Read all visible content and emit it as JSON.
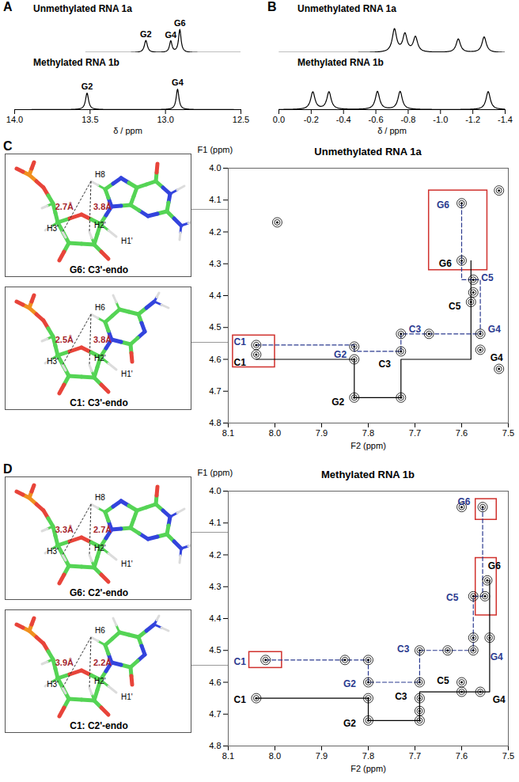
{
  "chart_data": [
    {
      "panel": "A",
      "type": "line",
      "xlabel": "δ / ppm",
      "xlim": [
        14.0,
        12.5
      ],
      "xticks": [
        {
          "value": 14.0,
          "label": "14.0"
        },
        13.5,
        {
          "value": 13.0,
          "label": "13.0"
        },
        12.5
      ],
      "ylim": [
        0,
        1
      ],
      "tick_labels": "x",
      "series": [
        {
          "name": "Unmethylated RNA 1a",
          "color": "#000000",
          "peaks": [
            {
              "label": "G2",
              "position": 13.13,
              "height": 0.45,
              "width": 0.012
            },
            {
              "label": "G4",
              "position": 12.965,
              "height": 0.42,
              "width": 0.01
            },
            {
              "label": "G6",
              "position": 12.905,
              "height": 0.85,
              "width": 0.01
            }
          ]
        },
        {
          "name": "Methylated RNA 1b",
          "color": "#000000",
          "peaks": [
            {
              "label": "G2",
              "position": 13.52,
              "height": 0.55,
              "width": 0.012
            },
            {
              "label": "G4",
              "position": 12.92,
              "height": 0.68,
              "width": 0.011
            }
          ]
        }
      ]
    },
    {
      "panel": "B",
      "type": "line",
      "xlabel": "δ / ppm",
      "xlim": [
        0.0,
        -1.4
      ],
      "xticks": [
        {
          "value": 0.0,
          "label": "0.0"
        },
        -0.2,
        -0.4,
        -0.6,
        -0.8,
        {
          "value": -1.0,
          "label": "-1.0"
        },
        -1.2,
        -1.4
      ],
      "ylim": [
        0,
        1
      ],
      "tick_labels": "x",
      "series": [
        {
          "name": "Unmethylated RNA 1a",
          "color": "#000000",
          "peaks": [
            {
              "position": -0.715,
              "height": 0.85,
              "width": 0.016
            },
            {
              "position": -0.78,
              "height": 0.66,
              "width": 0.016
            },
            {
              "position": -0.845,
              "height": 0.56,
              "width": 0.016
            },
            {
              "position": -1.11,
              "height": 0.5,
              "width": 0.016
            },
            {
              "position": -1.27,
              "height": 0.58,
              "width": 0.016
            }
          ]
        },
        {
          "name": "Methylated RNA 1b",
          "color": "#000000",
          "peaks": [
            {
              "position": -0.21,
              "height": 0.58,
              "width": 0.016
            },
            {
              "position": -0.31,
              "height": 0.58,
              "width": 0.016
            },
            {
              "position": -0.61,
              "height": 0.6,
              "width": 0.016
            },
            {
              "position": -0.75,
              "height": 0.6,
              "width": 0.016
            },
            {
              "position": -1.295,
              "height": 0.6,
              "width": 0.016
            }
          ]
        }
      ]
    },
    {
      "panel": "C",
      "type": "scatter",
      "title": "Unmethylated RNA 1a",
      "xlabel": "F2 (ppm)",
      "ylabel": "F1 (ppm)",
      "xlim": [
        8.1,
        7.5
      ],
      "xticks": [
        8.1,
        {
          "value": 8.0,
          "label": "8.0"
        },
        7.9,
        7.8,
        7.7,
        7.6,
        7.5
      ],
      "ylim": [
        4.0,
        4.8
      ],
      "yticks": [
        {
          "value": 4.0,
          "label": "4.0"
        },
        4.1,
        4.2,
        4.3,
        4.4,
        4.5,
        4.6,
        4.7,
        4.8
      ],
      "cross_peaks": {
        "color": "#000000",
        "x": [
          8.04,
          8.04,
          7.83,
          7.83,
          7.83,
          7.73,
          7.73,
          7.73,
          7.67,
          7.56,
          7.56,
          7.575,
          7.575,
          7.58,
          7.6,
          7.6,
          7.995,
          7.52,
          7.52
        ],
        "y": [
          4.555,
          4.585,
          4.56,
          4.6,
          4.72,
          4.52,
          4.575,
          4.72,
          4.52,
          4.52,
          4.57,
          4.35,
          4.39,
          4.42,
          4.11,
          4.29,
          4.17,
          4.07,
          4.63
        ]
      },
      "walks": [
        {
          "color": "#000000",
          "line_style": "solid",
          "x": [
            8.04,
            7.83,
            7.83,
            7.73,
            7.73,
            7.58,
            7.58
          ],
          "y": [
            4.6,
            4.6,
            4.72,
            4.72,
            4.6,
            4.6,
            4.29
          ]
        },
        {
          "color": "#2b3a8f",
          "line_style": "dashed",
          "x": [
            8.04,
            7.83,
            7.83,
            7.73,
            7.73,
            7.56,
            7.56,
            7.6,
            7.6
          ],
          "y": [
            4.555,
            4.555,
            4.575,
            4.575,
            4.52,
            4.52,
            4.35,
            4.35,
            4.11
          ]
        }
      ],
      "annotations": [
        {
          "text": "C1",
          "x": 8.075,
          "y": 4.61,
          "color": "#000000"
        },
        {
          "text": "G2",
          "x": 7.865,
          "y": 4.735,
          "color": "#000000"
        },
        {
          "text": "C3",
          "x": 7.765,
          "y": 4.615,
          "color": "#000000"
        },
        {
          "text": "G4",
          "x": 7.525,
          "y": 4.595,
          "color": "#000000"
        },
        {
          "text": "C5",
          "x": 7.615,
          "y": 4.435,
          "color": "#000000"
        },
        {
          "text": "G6",
          "x": 7.635,
          "y": 4.3,
          "color": "#000000"
        },
        {
          "text": "C1",
          "x": 8.075,
          "y": 4.545,
          "color": "#2b3a8f"
        },
        {
          "text": "G2",
          "x": 7.86,
          "y": 4.585,
          "color": "#2b3a8f"
        },
        {
          "text": "C3",
          "x": 7.7,
          "y": 4.505,
          "color": "#2b3a8f"
        },
        {
          "text": "G4",
          "x": 7.53,
          "y": 4.505,
          "color": "#2b3a8f"
        },
        {
          "text": "C5",
          "x": 7.545,
          "y": 4.345,
          "color": "#2b3a8f"
        },
        {
          "text": "G6",
          "x": 7.64,
          "y": 4.115,
          "color": "#2b3a8f"
        }
      ],
      "boxes": [
        {
          "x": [
            8.09,
            8.0
          ],
          "y": [
            4.525,
            4.625
          ],
          "color": "#d0312d"
        },
        {
          "x": [
            7.67,
            7.545
          ],
          "y": [
            4.07,
            4.32
          ],
          "color": "#d0312d"
        }
      ],
      "structures": [
        {
          "title": "G6: C3'-endo",
          "atoms": [
            "H8",
            "H3'",
            "H2'",
            "H1'"
          ],
          "distances": [
            {
              "from": "H8",
              "to": "H3'",
              "label": "2.7Å"
            },
            {
              "from": "H8",
              "to": "H2'",
              "label": "3.8Å"
            }
          ]
        },
        {
          "title": "C1: C3'-endo",
          "atoms": [
            "H6",
            "H3'",
            "H2'",
            "H1'"
          ],
          "distances": [
            {
              "from": "H6",
              "to": "H3'",
              "label": "2.5Å"
            },
            {
              "from": "H6",
              "to": "H2'",
              "label": "3.8Å"
            }
          ]
        }
      ]
    },
    {
      "panel": "D",
      "type": "scatter",
      "title": "Methylated RNA 1b",
      "xlabel": "F2 (ppm)",
      "ylabel": "F1 (ppm)",
      "xlim": [
        8.1,
        7.5
      ],
      "xticks": [
        8.1,
        {
          "value": 8.0,
          "label": "8.0"
        },
        7.9,
        7.8,
        7.7,
        7.6,
        7.5
      ],
      "ylim": [
        4.0,
        4.8
      ],
      "yticks": [
        {
          "value": 4.0,
          "label": "4.0"
        },
        4.1,
        4.2,
        4.3,
        4.4,
        4.5,
        4.6,
        4.7,
        4.8
      ],
      "cross_peaks": {
        "color": "#000000",
        "x": [
          8.02,
          8.04,
          7.8,
          7.8,
          7.8,
          7.8,
          7.69,
          7.69,
          7.69,
          7.69,
          7.63,
          7.575,
          7.575,
          7.54,
          7.56,
          7.6,
          7.6,
          7.545,
          7.55,
          7.575,
          7.6,
          7.555,
          7.85,
          7.69
        ],
        "y": [
          4.53,
          4.65,
          4.53,
          4.6,
          4.65,
          4.72,
          4.5,
          4.6,
          4.65,
          4.72,
          4.5,
          4.5,
          4.46,
          4.46,
          4.63,
          4.6,
          4.63,
          4.28,
          4.33,
          4.33,
          4.05,
          4.05,
          4.53,
          4.69
        ]
      },
      "walks": [
        {
          "color": "#000000",
          "line_style": "solid",
          "x": [
            8.04,
            7.8,
            7.8,
            7.69,
            7.69,
            7.54,
            7.54
          ],
          "y": [
            4.65,
            4.65,
            4.72,
            4.72,
            4.63,
            4.63,
            4.28
          ]
        },
        {
          "color": "#2b3a8f",
          "line_style": "dashed",
          "x": [
            8.02,
            7.8,
            7.8,
            7.69,
            7.69,
            7.575,
            7.575,
            7.555,
            7.555
          ],
          "y": [
            4.53,
            4.53,
            4.6,
            4.6,
            4.5,
            4.5,
            4.33,
            4.33,
            4.05
          ]
        }
      ],
      "annotations": [
        {
          "text": "C1",
          "x": 8.075,
          "y": 4.655,
          "color": "#000000"
        },
        {
          "text": "G2",
          "x": 7.84,
          "y": 4.73,
          "color": "#000000"
        },
        {
          "text": "C3",
          "x": 7.73,
          "y": 4.645,
          "color": "#000000"
        },
        {
          "text": "G4",
          "x": 7.52,
          "y": 4.655,
          "color": "#000000"
        },
        {
          "text": "C5",
          "x": 7.64,
          "y": 4.595,
          "color": "#000000"
        },
        {
          "text": "G6",
          "x": 7.53,
          "y": 4.235,
          "color": "#000000"
        },
        {
          "text": "C1",
          "x": 8.075,
          "y": 4.535,
          "color": "#2b3a8f"
        },
        {
          "text": "G2",
          "x": 7.84,
          "y": 4.605,
          "color": "#2b3a8f"
        },
        {
          "text": "C3",
          "x": 7.725,
          "y": 4.495,
          "color": "#2b3a8f"
        },
        {
          "text": "G4",
          "x": 7.525,
          "y": 4.52,
          "color": "#2b3a8f"
        },
        {
          "text": "C5",
          "x": 7.62,
          "y": 4.335,
          "color": "#2b3a8f"
        },
        {
          "text": "G6",
          "x": 7.595,
          "y": 4.035,
          "color": "#2b3a8f"
        }
      ],
      "boxes": [
        {
          "x": [
            8.055,
            7.985
          ],
          "y": [
            4.505,
            4.555
          ],
          "color": "#d0312d"
        },
        {
          "x": [
            7.57,
            7.525
          ],
          "y": [
            4.025,
            4.09
          ],
          "color": "#d0312d"
        },
        {
          "x": [
            7.57,
            7.525
          ],
          "y": [
            4.21,
            4.39
          ],
          "color": "#d0312d"
        }
      ],
      "structures": [
        {
          "title": "G6: C2'-endo",
          "atoms": [
            "H8",
            "H3'",
            "H2'",
            "H1'"
          ],
          "distances": [
            {
              "from": "H8",
              "to": "H3'",
              "label": "3.3Å"
            },
            {
              "from": "H8",
              "to": "H2'",
              "label": "2.7Å"
            }
          ]
        },
        {
          "title": "C1: C2'-endo",
          "atoms": [
            "H6",
            "H3'",
            "H2'",
            "H1'"
          ],
          "distances": [
            {
              "from": "H6",
              "to": "H3'",
              "label": "3.9Å"
            },
            {
              "from": "H6",
              "to": "H2'",
              "label": "2.2Å"
            }
          ]
        }
      ]
    }
  ]
}
